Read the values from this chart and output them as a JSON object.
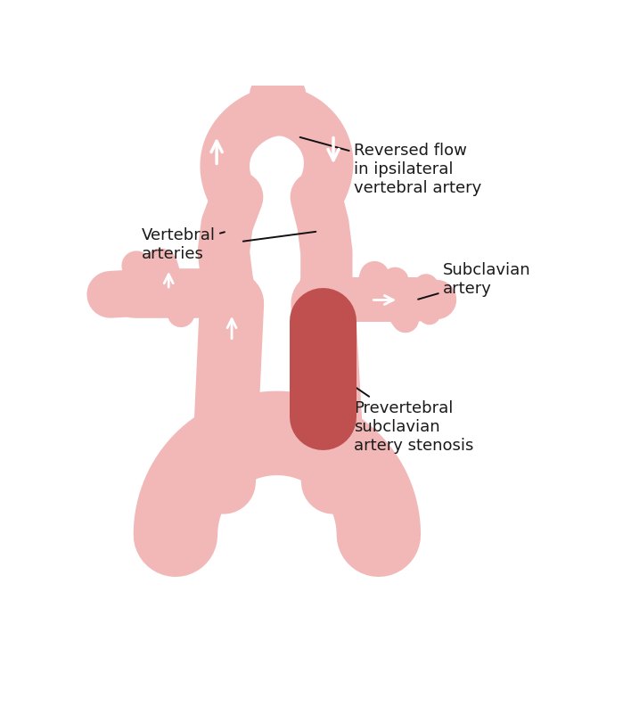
{
  "background_color": "#ffffff",
  "artery_color": "#f2b8b8",
  "artery_dark": "#e8a0a0",
  "stenosis_color": "#c05050",
  "arrow_color": "#ffffff",
  "text_color": "#1a1a1a",
  "line_color": "#111111",
  "labels": {
    "reversed_flow": "Reversed flow\nin ipsilateral\nvertebral artery",
    "vertebral": "Vertebral\narteries",
    "subclavian": "Subclavian\nartery",
    "stenosis": "Prevertebral\nsubclavian\nartery stenosis"
  },
  "fontsize": 13
}
